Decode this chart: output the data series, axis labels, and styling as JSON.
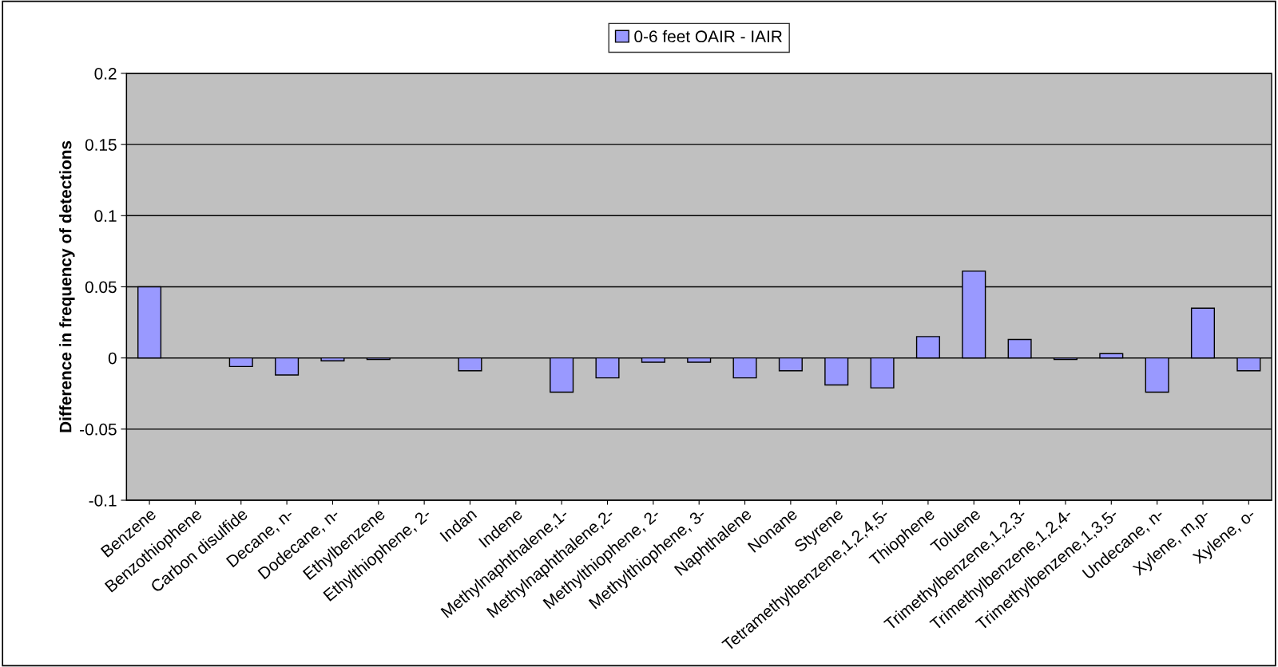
{
  "chart_data": {
    "type": "bar",
    "categories": [
      "Benzene",
      "Benzothiophene",
      "Carbon disulfide",
      "Decane, n-",
      "Dodecane, n-",
      "Ethylbenzene",
      "Ethylthiophene, 2-",
      "Indan",
      "Indene",
      "Methylnaphthalene,1-",
      "Methylnaphthalene,2-",
      "Methylthiophene, 2-",
      "Methylthiophene, 3-",
      "Naphthalene",
      "Nonane",
      "Styrene",
      "Tetramethylbenzene,1,2,4,5-",
      "Thiophene",
      "Toluene",
      "Trimethylbenzene,1,2,3-",
      "Trimethylbenzene,1,2,4-",
      "Trimethylbenzene,1,3,5-",
      "Undecane, n-",
      "Xylene, m,p-",
      "Xylene, o-"
    ],
    "series": [
      {
        "name": "0-6 feet OAIR - IAIR",
        "color": "#9999ff",
        "values": [
          0.05,
          0,
          -0.006,
          -0.012,
          -0.002,
          -0.001,
          0,
          -0.009,
          0,
          -0.024,
          -0.014,
          -0.003,
          -0.003,
          -0.014,
          -0.009,
          -0.019,
          -0.021,
          0.015,
          0.061,
          0.013,
          -0.001,
          0.003,
          -0.024,
          0.035,
          -0.009
        ]
      }
    ],
    "ylabel": "Difference in frequency of detections",
    "ylim": [
      -0.1,
      0.2
    ],
    "yticks": [
      -0.1,
      -0.05,
      0,
      0.05,
      0.1,
      0.15,
      0.2
    ],
    "grid": "y",
    "legend": "top"
  }
}
